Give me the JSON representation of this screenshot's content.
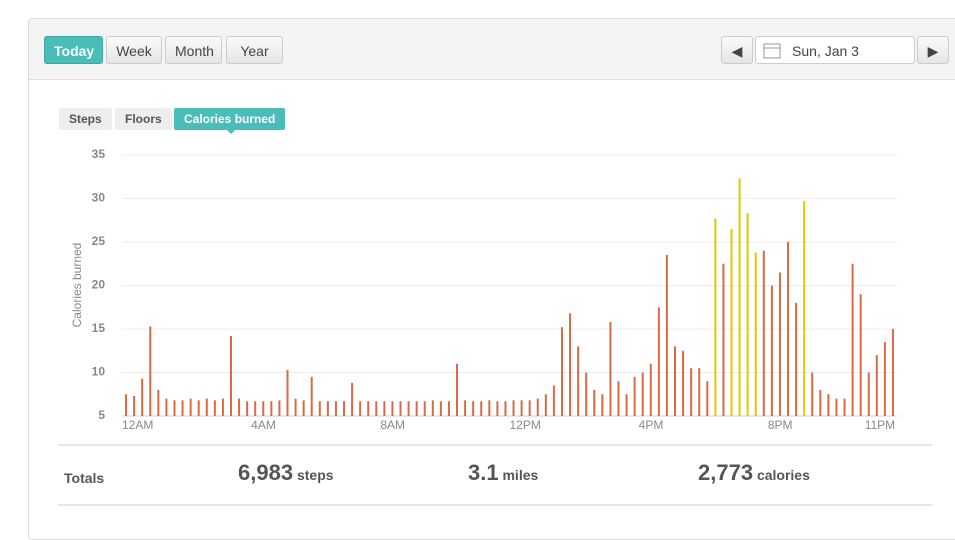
{
  "toolbar": {
    "tabs": [
      "Today",
      "Week",
      "Month",
      "Year"
    ],
    "active_tab": 0,
    "date": "Sun, Jan 3"
  },
  "metric_tabs": {
    "items": [
      "Steps",
      "Floors",
      "Calories burned"
    ],
    "active": 2
  },
  "chart_data": {
    "type": "bar",
    "y_label": "Calories burned",
    "categories": [
      "12AM",
      null,
      null,
      null,
      null,
      null,
      null,
      null,
      null,
      null,
      null,
      null,
      null,
      null,
      null,
      null,
      "4AM",
      null,
      null,
      null,
      null,
      null,
      null,
      null,
      null,
      null,
      null,
      null,
      null,
      null,
      null,
      null,
      "8AM",
      null,
      null,
      null,
      null,
      null,
      null,
      null,
      null,
      null,
      null,
      null,
      null,
      null,
      null,
      null,
      "12PM",
      null,
      null,
      null,
      null,
      null,
      null,
      null,
      null,
      null,
      null,
      null,
      null,
      null,
      null,
      null,
      "4PM",
      null,
      null,
      null,
      null,
      null,
      null,
      null,
      null,
      null,
      null,
      null,
      null,
      null,
      null,
      null,
      "8PM",
      null,
      null,
      null,
      null,
      null,
      null,
      null,
      null,
      null,
      null,
      null,
      "11PM",
      null,
      null,
      null
    ],
    "values": [
      7.5,
      7.3,
      9.3,
      15.3,
      8,
      7,
      6.8,
      6.8,
      7,
      6.8,
      7,
      6.8,
      7,
      14.2,
      7,
      6.7,
      6.7,
      6.7,
      6.7,
      6.8,
      10.3,
      7,
      6.8,
      9.5,
      6.7,
      6.7,
      6.7,
      6.7,
      8.8,
      6.7,
      6.7,
      6.7,
      6.7,
      6.7,
      6.7,
      6.7,
      6.7,
      6.7,
      6.8,
      6.7,
      6.7,
      11,
      6.8,
      6.7,
      6.7,
      6.8,
      6.7,
      6.7,
      6.8,
      6.8,
      6.8,
      7,
      7.5,
      8.5,
      15.2,
      16.8,
      13,
      10,
      8,
      7.5,
      15.8,
      9,
      7.5,
      9.5,
      10,
      11,
      17.5,
      23.5,
      13,
      12.5,
      10.5,
      10.5,
      9,
      27.7,
      22.5,
      26.5,
      32.3,
      28.3,
      23.8,
      24,
      20,
      21.5,
      25,
      18,
      29.7,
      10,
      8,
      7.5,
      7,
      7,
      22.5,
      19,
      10,
      12,
      13.5,
      15
    ],
    "color": "#d86a45",
    "highlight_color": "#e3c800",
    "highlighted": [
      73,
      75,
      76,
      77,
      78,
      84
    ],
    "ylim": [
      5,
      35
    ],
    "yticks": [
      5,
      10,
      15,
      20,
      25,
      30,
      35
    ],
    "grid": true
  },
  "totals": {
    "label": "Totals",
    "steps": "6,983",
    "steps_unit": "steps",
    "miles": "3.1",
    "miles_unit": "miles",
    "calories": "2,773",
    "calories_unit": "calories"
  }
}
